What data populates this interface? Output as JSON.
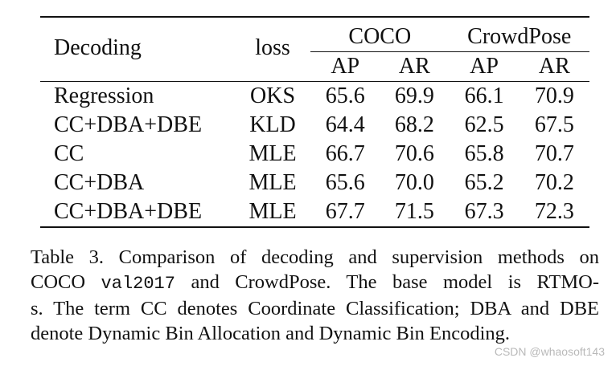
{
  "table": {
    "headers": {
      "decoding": "Decoding",
      "loss": "loss",
      "group1": "COCO",
      "group2": "CrowdPose",
      "ap1": "AP",
      "ar1": "AR",
      "ap2": "AP",
      "ar2": "AR"
    },
    "rows": [
      {
        "decoding": "Regression",
        "loss": "OKS",
        "coco_ap": "65.6",
        "coco_ar": "69.9",
        "cp_ap": "66.1",
        "cp_ar": "70.9"
      },
      {
        "decoding": "CC+DBA+DBE",
        "loss": "KLD",
        "coco_ap": "64.4",
        "coco_ar": "68.2",
        "cp_ap": "62.5",
        "cp_ar": "67.5"
      },
      {
        "decoding": "CC",
        "loss": "MLE",
        "coco_ap": "66.7",
        "coco_ar": "70.6",
        "cp_ap": "65.8",
        "cp_ar": "70.7"
      },
      {
        "decoding": "CC+DBA",
        "loss": "MLE",
        "coco_ap": "65.6",
        "coco_ar": "70.0",
        "cp_ap": "65.2",
        "cp_ar": "70.2"
      },
      {
        "decoding": "CC+DBA+DBE",
        "loss": "MLE",
        "coco_ap": "67.7",
        "coco_ar": "71.5",
        "cp_ap": "67.3",
        "cp_ar": "72.3"
      }
    ]
  },
  "caption": {
    "line1": "Table 3.  Comparison of decoding and supervision methods on",
    "line2a": "COCO ",
    "line2code": "val2017",
    "line2b": " and CrowdPose.  The base model is RTMO-",
    "line3": "s. The term CC denotes Coordinate Classification; DBA and DBE",
    "line4": "denote Dynamic Bin Allocation and Dynamic Bin Encoding."
  },
  "watermark": "CSDN @whaosoft143"
}
